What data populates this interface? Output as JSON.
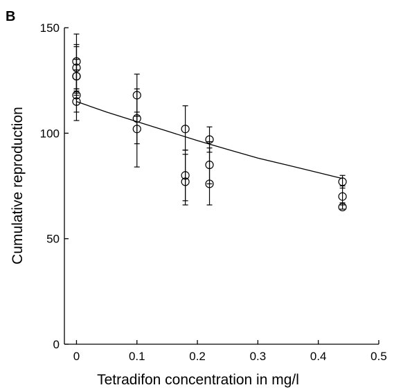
{
  "chart_data": {
    "type": "scatter",
    "panel_label": "B",
    "title": "",
    "xlabel": "Tetradifon concentration in mg/l",
    "ylabel": "Cumulative reproduction",
    "xlim": [
      -0.02,
      0.5
    ],
    "ylim": [
      0,
      150
    ],
    "xticks": [
      0,
      0.1,
      0.2,
      0.3,
      0.4,
      0.5
    ],
    "xtick_labels": [
      "0",
      "0.1",
      "0.2",
      "0.3",
      "0.4",
      "0.5"
    ],
    "yticks": [
      0,
      50,
      100,
      150
    ],
    "ytick_labels": [
      "0",
      "50",
      "100",
      "150"
    ],
    "grid": false,
    "marker": "open-circle",
    "points": [
      {
        "x": 0,
        "y": 134,
        "lo": 121,
        "hi": 147
      },
      {
        "x": 0,
        "y": 131,
        "lo": 120,
        "hi": 142
      },
      {
        "x": 0,
        "y": 127,
        "lo": 118,
        "hi": 141
      },
      {
        "x": 0,
        "y": 127,
        "lo": 119,
        "hi": 135
      },
      {
        "x": 0,
        "y": 118,
        "lo": 106,
        "hi": 130
      },
      {
        "x": 0,
        "y": 115,
        "lo": 110,
        "hi": 121
      },
      {
        "x": 0.1,
        "y": 118,
        "lo": 108,
        "hi": 128
      },
      {
        "x": 0.1,
        "y": 107,
        "lo": 95,
        "hi": 121
      },
      {
        "x": 0.1,
        "y": 102,
        "lo": 84,
        "hi": 110
      },
      {
        "x": 0.18,
        "y": 102,
        "lo": 92,
        "hi": 113
      },
      {
        "x": 0.18,
        "y": 80,
        "lo": 68,
        "hi": 92
      },
      {
        "x": 0.18,
        "y": 77,
        "lo": 66,
        "hi": 90
      },
      {
        "x": 0.22,
        "y": 97,
        "lo": 91,
        "hi": 103
      },
      {
        "x": 0.22,
        "y": 85,
        "lo": 76,
        "hi": 96
      },
      {
        "x": 0.22,
        "y": 76,
        "lo": 66,
        "hi": 93
      },
      {
        "x": 0.44,
        "y": 77,
        "lo": 74,
        "hi": 80
      },
      {
        "x": 0.44,
        "y": 70,
        "lo": 66,
        "hi": 75
      },
      {
        "x": 0.44,
        "y": 65,
        "lo": 64,
        "hi": 67
      }
    ],
    "fit_line": {
      "x": [
        0,
        0.05,
        0.1,
        0.15,
        0.2,
        0.25,
        0.3,
        0.35,
        0.4,
        0.44
      ],
      "y": [
        115,
        110,
        105.5,
        101,
        96.5,
        92.3,
        88.2,
        84.8,
        81.3,
        78.5
      ]
    },
    "colors": {
      "marks": "#000000",
      "background": "#ffffff"
    }
  }
}
